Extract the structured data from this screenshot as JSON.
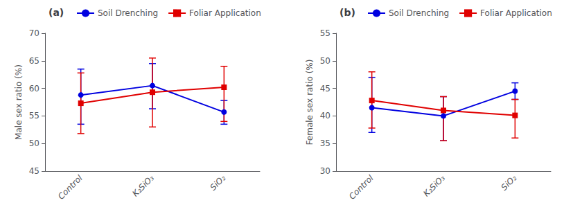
{
  "chart_data": [
    {
      "type": "line",
      "title": "(a)",
      "ylabel": "Male sex ratio (%)",
      "categories": [
        "Control",
        "K₂SiO₃",
        "SiO₂"
      ],
      "ylim": [
        45,
        70
      ],
      "yticks": [
        45,
        50,
        55,
        60,
        65,
        70
      ],
      "grid": false,
      "legend": "top",
      "series": [
        {
          "name": "Soil Drenching",
          "color": "#0000e0",
          "marker": "circle",
          "values": [
            58.8,
            60.5,
            55.7
          ],
          "yerr_lo": [
            5.3,
            4.2,
            2.2
          ],
          "yerr_hi": [
            4.7,
            4.0,
            2.1
          ]
        },
        {
          "name": "Foliar Application",
          "color": "#e00000",
          "marker": "square",
          "values": [
            57.3,
            59.3,
            60.2
          ],
          "yerr_lo": [
            5.5,
            6.3,
            6.2
          ],
          "yerr_hi": [
            5.5,
            6.2,
            3.8
          ]
        }
      ]
    },
    {
      "type": "line",
      "title": "(b)",
      "ylabel": "Female sex ratio (%)",
      "categories": [
        "Control",
        "K₂SiO₃",
        "SiO₂"
      ],
      "ylim": [
        30,
        55
      ],
      "yticks": [
        30,
        35,
        40,
        45,
        50,
        55
      ],
      "grid": false,
      "legend": "top",
      "series": [
        {
          "name": "Soil Drenching",
          "color": "#0000e0",
          "marker": "circle",
          "values": [
            41.5,
            40.0,
            44.5
          ],
          "yerr_lo": [
            4.5,
            4.5,
            1.5
          ],
          "yerr_hi": [
            5.5,
            3.5,
            1.5
          ]
        },
        {
          "name": "Foliar Application",
          "color": "#e00000",
          "marker": "square",
          "values": [
            42.8,
            41.0,
            40.1
          ],
          "yerr_lo": [
            5.0,
            5.5,
            4.1
          ],
          "yerr_hi": [
            5.2,
            2.5,
            2.9
          ]
        }
      ]
    }
  ]
}
